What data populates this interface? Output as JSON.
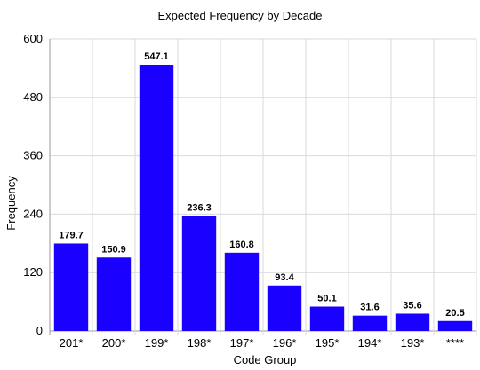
{
  "chart_data": {
    "type": "bar",
    "title": "Expected Frequency by Decade",
    "xlabel": "Code Group",
    "ylabel": "Frequency",
    "categories": [
      "201*",
      "200*",
      "199*",
      "198*",
      "197*",
      "196*",
      "195*",
      "194*",
      "193*",
      "****"
    ],
    "values": [
      179.7,
      150.9,
      547.1,
      236.3,
      160.8,
      93.4,
      50.1,
      31.6,
      35.6,
      20.5
    ],
    "data_labels": [
      "179.7",
      "150.9",
      "547.1",
      "236.3",
      "160.8",
      "93.4",
      "50.1",
      "31.6",
      "35.6",
      "20.5"
    ],
    "ylim": [
      0,
      600
    ],
    "yticks": [
      0,
      120,
      240,
      360,
      480,
      600
    ],
    "grid": true,
    "bar_color": "#1a00ff"
  }
}
